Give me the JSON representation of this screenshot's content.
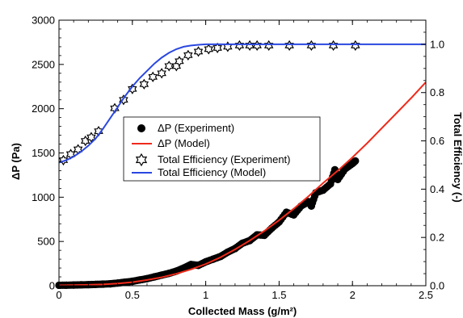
{
  "chart_data": {
    "type": "line",
    "xlabel": "Collected Mass (g/m²)",
    "ylabel_left": "ΔP (Pa)",
    "ylabel_right": "Total Efficiency (-)",
    "xlim": [
      0,
      2.5
    ],
    "ylim_left": [
      0,
      3000
    ],
    "ylim_right": [
      0.0,
      1.1
    ],
    "x_ticks": [
      0,
      0.5,
      1,
      1.5,
      2,
      2.5
    ],
    "x_tick_labels": [
      "0",
      "0.5",
      "1",
      "1.5",
      "2",
      "2.5"
    ],
    "y_left_ticks": [
      0,
      500,
      1000,
      1500,
      2000,
      2500,
      3000
    ],
    "y_left_tick_labels": [
      "0",
      "500",
      "1000",
      "1500",
      "2000",
      "2500",
      "3000"
    ],
    "y_right_ticks": [
      0.0,
      0.2,
      0.4,
      0.6,
      0.8,
      1.0
    ],
    "y_right_tick_labels": [
      "0.0",
      "0.2",
      "0.4",
      "0.6",
      "0.8",
      "1.0"
    ],
    "grid": false,
    "legend_position": "center",
    "series": [
      {
        "name": "ΔP (Experiment)",
        "axis": "left",
        "style": "markers-filled-circle",
        "color": "#000000",
        "x": [
          0.0,
          0.05,
          0.1,
          0.15,
          0.2,
          0.25,
          0.3,
          0.35,
          0.4,
          0.45,
          0.5,
          0.55,
          0.6,
          0.65,
          0.7,
          0.75,
          0.8,
          0.85,
          0.9,
          0.95,
          1.0,
          1.05,
          1.1,
          1.15,
          1.2,
          1.25,
          1.3,
          1.35,
          1.4,
          1.45,
          1.5,
          1.55,
          1.6,
          1.65,
          1.7,
          1.72,
          1.75,
          1.8,
          1.85,
          1.88,
          1.9,
          1.95,
          2.0,
          2.02
        ],
        "y": [
          5,
          6,
          8,
          10,
          12,
          15,
          18,
          22,
          30,
          40,
          50,
          65,
          80,
          100,
          120,
          140,
          165,
          200,
          240,
          230,
          270,
          300,
          330,
          380,
          420,
          480,
          510,
          575,
          570,
          650,
          720,
          830,
          800,
          900,
          950,
          900,
          1050,
          1080,
          1150,
          1310,
          1200,
          1320,
          1380,
          1410
        ]
      },
      {
        "name": "ΔP (Model)",
        "axis": "left",
        "style": "line",
        "color": "#ee2b1b",
        "x": [
          0.0,
          0.1,
          0.2,
          0.3,
          0.4,
          0.5,
          0.6,
          0.7,
          0.8,
          0.9,
          1.0,
          1.1,
          1.2,
          1.3,
          1.4,
          1.5,
          1.6,
          1.7,
          1.8,
          1.9,
          2.0,
          2.1,
          2.2,
          2.3,
          2.4,
          2.5
        ],
        "y": [
          5,
          7,
          10,
          15,
          25,
          40,
          65,
          95,
          135,
          185,
          245,
          320,
          410,
          510,
          620,
          740,
          870,
          1010,
          1160,
          1300,
          1450,
          1610,
          1780,
          1950,
          2120,
          2300
        ]
      },
      {
        "name": "Total Efficiency (Experiment)",
        "axis": "right",
        "style": "markers-open-star",
        "color": "#000000",
        "x": [
          0.03,
          0.08,
          0.13,
          0.18,
          0.22,
          0.27,
          0.38,
          0.44,
          0.5,
          0.58,
          0.64,
          0.7,
          0.75,
          0.8,
          0.82,
          0.88,
          0.95,
          1.02,
          1.08,
          1.15,
          1.23,
          1.3,
          1.35,
          1.43,
          1.57,
          1.72,
          1.87,
          2.02
        ],
        "y": [
          0.52,
          0.545,
          0.565,
          0.6,
          0.615,
          0.64,
          0.735,
          0.77,
          0.815,
          0.835,
          0.865,
          0.88,
          0.91,
          0.91,
          0.93,
          0.955,
          0.97,
          0.98,
          0.985,
          0.99,
          0.995,
          0.995,
          0.995,
          0.995,
          0.995,
          0.995,
          0.995,
          0.995
        ]
      },
      {
        "name": "Total Efficiency (Model)",
        "axis": "right",
        "style": "line",
        "color": "#2a47e0",
        "x": [
          0.0,
          0.05,
          0.1,
          0.15,
          0.2,
          0.25,
          0.3,
          0.35,
          0.4,
          0.45,
          0.5,
          0.55,
          0.6,
          0.65,
          0.7,
          0.75,
          0.8,
          0.85,
          0.9,
          0.95,
          1.0,
          1.1,
          1.2,
          1.4,
          1.6,
          1.8,
          2.0,
          2.2,
          2.5
        ],
        "y": [
          0.51,
          0.52,
          0.535,
          0.555,
          0.58,
          0.61,
          0.65,
          0.695,
          0.74,
          0.785,
          0.825,
          0.86,
          0.89,
          0.92,
          0.945,
          0.965,
          0.98,
          0.99,
          0.995,
          0.998,
          1.0,
          1.0,
          1.0,
          1.0,
          1.0,
          1.0,
          1.0,
          1.0,
          1.0
        ]
      }
    ]
  }
}
